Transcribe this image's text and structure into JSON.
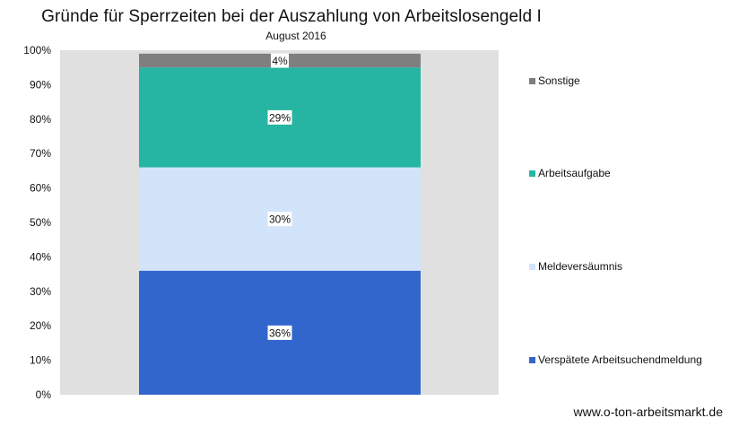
{
  "chart_data": {
    "type": "bar",
    "stacked": true,
    "percent": true,
    "title": "Gründe für Sperrzeiten bei der Auszahlung von Arbeitslosengeld I",
    "subtitle": "August 2016",
    "ylim": [
      0,
      100
    ],
    "yticks": [
      "0%",
      "10%",
      "20%",
      "30%",
      "40%",
      "50%",
      "60%",
      "70%",
      "80%",
      "90%",
      "100%"
    ],
    "grid": false,
    "legend_position": "right",
    "series": [
      {
        "name": "Verspätete Arbeitsuchendmeldung",
        "value": 36,
        "label": "36%",
        "color": "#3366CC"
      },
      {
        "name": "Meldeversäumnis",
        "value": 30,
        "label": "30%",
        "color": "#D2E4FA"
      },
      {
        "name": "Arbeitsaufgabe",
        "value": 29,
        "label": "29%",
        "color": "#26B5A3"
      },
      {
        "name": "Sonstige",
        "value": 4,
        "label": "4%",
        "color": "#7F7F7F"
      }
    ]
  },
  "legend_order": [
    "Sonstige",
    "Arbeitsaufgabe",
    "Meldeversäumnis",
    "Verspätete Arbeitsuchendmeldung"
  ],
  "colors": {
    "plot_background": "#E0E0E0"
  },
  "watermark": "www.o-ton-arbeitsmarkt.de"
}
